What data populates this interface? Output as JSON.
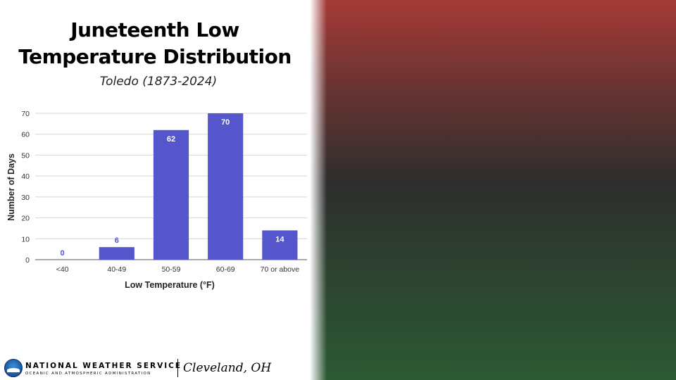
{
  "header": {
    "title_line1": "Juneteenth Low",
    "title_line2": "Temperature Distribution",
    "subtitle": "Toledo (1873-2024)"
  },
  "chart_data": {
    "type": "bar",
    "categories": [
      "<40",
      "40-49",
      "50-59",
      "60-69",
      "70 or above"
    ],
    "values": [
      0,
      6,
      62,
      70,
      14
    ],
    "data_labels": [
      "0",
      "6",
      "62",
      "70",
      "14"
    ],
    "xlabel": "Low Temperature (°F)",
    "ylabel": "Number of Days",
    "ylim": [
      0,
      70
    ],
    "yticks": [
      0,
      10,
      20,
      30,
      40,
      50,
      60,
      70
    ],
    "grid": true,
    "legend": "none",
    "bar_color": "#5555cc",
    "label_color_inside": "#ffffff"
  },
  "footer": {
    "org_name": "NATIONAL WEATHER SERVICE",
    "org_sub": "OCEANIC AND ATMOSPHERIC ADMINISTRATION",
    "office": "Cleveland, OH",
    "logo_icon": "noaa-logo-icon"
  },
  "colors": {
    "gradient_top": "#a53a36",
    "gradient_mid": "#2e2e2e",
    "gradient_bottom": "#2c5a33"
  }
}
